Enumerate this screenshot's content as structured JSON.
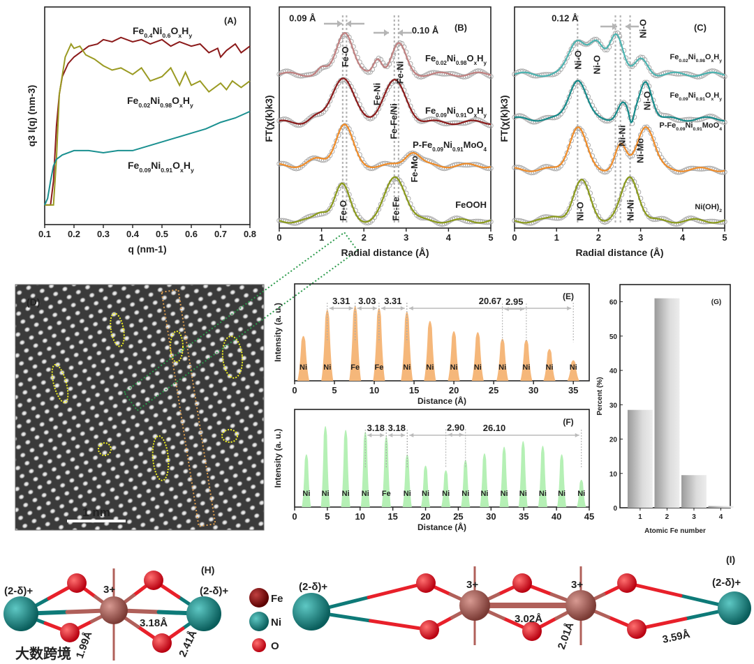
{
  "chart_data": [
    {
      "id": "A",
      "type": "line",
      "panel_label": "(A)",
      "xlabel": "q (nm-1)",
      "ylabel": "q3 I(q) (nm-3)",
      "xlim": [
        0.1,
        0.8
      ],
      "ylim": [
        0,
        1
      ],
      "xticks": [
        "0.1",
        "0.2",
        "0.3",
        "0.4",
        "0.5",
        "0.6",
        "0.7",
        "0.8"
      ],
      "series": [
        {
          "name": "Fe0.4Ni0.6OxHy",
          "color": "#8b1a1a",
          "x": [
            0.1,
            0.12,
            0.13,
            0.14,
            0.15,
            0.16,
            0.18,
            0.2,
            0.22,
            0.25,
            0.28,
            0.3,
            0.33,
            0.36,
            0.4,
            0.43,
            0.46,
            0.5,
            0.53,
            0.56,
            0.6,
            0.63,
            0.66,
            0.69,
            0.7,
            0.72,
            0.75,
            0.77,
            0.8
          ],
          "y": [
            0.09,
            0.09,
            0.2,
            0.45,
            0.6,
            0.68,
            0.74,
            0.77,
            0.79,
            0.82,
            0.83,
            0.85,
            0.84,
            0.86,
            0.84,
            0.85,
            0.83,
            0.85,
            0.82,
            0.84,
            0.82,
            0.83,
            0.79,
            0.81,
            0.77,
            0.8,
            0.83,
            0.79,
            0.82
          ]
        },
        {
          "name": "Fe0.02Ni0.98OxHy",
          "color": "#9a9a22",
          "x": [
            0.1,
            0.13,
            0.14,
            0.15,
            0.17,
            0.19,
            0.2,
            0.22,
            0.24,
            0.27,
            0.3,
            0.33,
            0.36,
            0.4,
            0.43,
            0.46,
            0.5,
            0.53,
            0.56,
            0.58,
            0.6,
            0.63,
            0.66,
            0.7,
            0.72,
            0.74,
            0.77,
            0.8
          ],
          "y": [
            0.09,
            0.09,
            0.3,
            0.6,
            0.77,
            0.83,
            0.81,
            0.82,
            0.78,
            0.76,
            0.73,
            0.71,
            0.72,
            0.69,
            0.72,
            0.66,
            0.68,
            0.72,
            0.64,
            0.7,
            0.64,
            0.66,
            0.61,
            0.65,
            0.62,
            0.66,
            0.63,
            0.66
          ]
        },
        {
          "name": "Fe0.09Ni0.91OxHy",
          "color": "#1a9090",
          "x": [
            0.1,
            0.11,
            0.12,
            0.13,
            0.14,
            0.16,
            0.2,
            0.25,
            0.3,
            0.35,
            0.4,
            0.45,
            0.5,
            0.55,
            0.6,
            0.65,
            0.7,
            0.75,
            0.8
          ],
          "y": [
            0.09,
            0.12,
            0.2,
            0.27,
            0.3,
            0.32,
            0.34,
            0.34,
            0.33,
            0.34,
            0.34,
            0.36,
            0.38,
            0.4,
            0.42,
            0.44,
            0.47,
            0.49,
            0.52
          ]
        }
      ]
    },
    {
      "id": "B",
      "type": "line",
      "panel_label": "(B)",
      "xlabel": "Radial distance (Å)",
      "ylabel": "FT(χ(k)k3)",
      "xlim": [
        0,
        5
      ],
      "ylim": [
        0,
        4.6
      ],
      "xticks": [
        "0",
        "1",
        "2",
        "3",
        "4",
        "5"
      ],
      "series": [
        {
          "name": "Fe0.02Ni0.98OxHy",
          "color": "#c08080",
          "offset": 3.2,
          "peaks": [
            [
              1.0,
              0.12,
              0.1
            ],
            [
              1.55,
              0.9,
              0.19
            ],
            [
              2.33,
              0.33,
              0.1
            ],
            [
              2.82,
              0.62,
              0.17
            ]
          ]
        },
        {
          "name": "Fe0.09Ni0.91OxHy",
          "color": "#8b1a1a",
          "offset": 2.2,
          "peaks": [
            [
              0.85,
              0.1,
              0.15
            ],
            [
              1.5,
              0.95,
              0.25
            ],
            [
              2.72,
              0.85,
              0.27
            ]
          ]
        },
        {
          "name": "P-Fe0.09Ni0.91MoO4",
          "color": "#f08c28",
          "offset": 1.3,
          "peaks": [
            [
              0.9,
              0.12,
              0.2
            ],
            [
              1.53,
              0.85,
              0.2
            ],
            [
              3.15,
              0.3,
              0.17
            ]
          ]
        },
        {
          "name": "FeOOH",
          "color": "#8a9a1a",
          "offset": 0.15,
          "peaks": [
            [
              1.0,
              0.18,
              0.15
            ],
            [
              1.48,
              0.75,
              0.18
            ],
            [
              2.75,
              0.92,
              0.24
            ]
          ]
        }
      ],
      "annotations": [
        {
          "text": "0.09 Å",
          "x": 0.55,
          "y": 4.3
        },
        {
          "text": "0.10 Å",
          "x": 3.45,
          "y": 4.05
        },
        {
          "text": "Fe-O",
          "x": 1.55,
          "y": 3.35,
          "vertical": true
        },
        {
          "text": "Fe-Ni",
          "x": 2.3,
          "y": 2.55,
          "vertical": true
        },
        {
          "text": "Fe-Ni",
          "x": 2.85,
          "y": 3.0,
          "vertical": true
        },
        {
          "text": "Fe-Fe/Ni",
          "x": 2.7,
          "y": 1.85,
          "vertical": true
        },
        {
          "text": "Fe-Mo",
          "x": 3.3,
          "y": 0.95,
          "vertical": true
        },
        {
          "text": "Fe-O",
          "x": 1.5,
          "y": 0.15,
          "vertical": true
        },
        {
          "text": "Fe-Fe",
          "x": 2.75,
          "y": 0.15,
          "vertical": true
        }
      ],
      "dashed_lines_x": [
        1.5,
        1.59,
        2.72,
        2.82
      ]
    },
    {
      "id": "C",
      "type": "line",
      "panel_label": "(C)",
      "xlabel": "Radial distance (Å)",
      "ylabel": "FT(χ(k)k3)",
      "xlim": [
        0,
        5
      ],
      "ylim": [
        0,
        4.6
      ],
      "xticks": [
        "0",
        "1",
        "2",
        "3",
        "4",
        "5"
      ],
      "series": [
        {
          "name": "Fe0.02Ni0.98OxHy",
          "color": "#4bb3b0",
          "offset": 3.2,
          "peaks": [
            [
              1.5,
              0.72,
              0.2
            ],
            [
              1.95,
              0.6,
              0.17
            ],
            [
              2.42,
              0.86,
              0.16
            ],
            [
              3.02,
              0.3,
              0.15
            ]
          ]
        },
        {
          "name": "Fe0.09Ni0.91OxHy",
          "color": "#158a8a",
          "offset": 2.27,
          "peaks": [
            [
              1.5,
              0.83,
              0.2
            ],
            [
              2.57,
              0.34,
              0.12
            ],
            [
              2.78,
              -0.25,
              0.05
            ],
            [
              3.12,
              0.8,
              0.15
            ]
          ]
        },
        {
          "name": "P-Fe0.09Ni0.91MoO4",
          "color": "#f08c28",
          "offset": 1.22,
          "peaks": [
            [
              1.5,
              0.88,
              0.2
            ],
            [
              2.52,
              0.5,
              0.13
            ],
            [
              3.12,
              0.92,
              0.2
            ]
          ]
        },
        {
          "name": "Ni(OH)2",
          "color": "#8a9a1a",
          "offset": 0.15,
          "peaks": [
            [
              1.0,
              0.1,
              0.15
            ],
            [
              1.6,
              0.82,
              0.2
            ],
            [
              2.75,
              0.92,
              0.2
            ]
          ]
        }
      ],
      "annotations": [
        {
          "text": "0.12 Å",
          "x": 1.2,
          "y": 4.3
        },
        {
          "text": "Ni-O",
          "x": 1.5,
          "y": 3.3,
          "vertical": true
        },
        {
          "text": "Ni-O",
          "x": 1.95,
          "y": 3.2,
          "vertical": true
        },
        {
          "text": "Ni-O",
          "x": 3.05,
          "y": 3.95,
          "vertical": true
        },
        {
          "text": "Ni-O",
          "x": 3.15,
          "y": 2.45,
          "vertical": true
        },
        {
          "text": "Ni-Ni",
          "x": 2.55,
          "y": 1.7,
          "vertical": true
        },
        {
          "text": "Ni-Mo",
          "x": 3.1,
          "y": 1.35,
          "vertical": true
        },
        {
          "text": "Ni-O",
          "x": 1.55,
          "y": 0.15,
          "vertical": true
        },
        {
          "text": "Ni-Ni",
          "x": 2.75,
          "y": 0.15,
          "vertical": true
        }
      ],
      "dashed_lines_x": [
        1.5,
        2.4,
        2.52,
        2.75
      ]
    },
    {
      "id": "E",
      "type": "area",
      "panel_label": "(E)",
      "xlabel": "Distance (Å)",
      "ylabel": "Intensity (a. u.)",
      "xlim": [
        0,
        37
      ],
      "ylim": [
        0,
        1
      ],
      "xticks": [
        "0",
        "5",
        "10",
        "15",
        "20",
        "25",
        "30",
        "35"
      ],
      "fill": "#f5b77a",
      "peaks_x": [
        1.1,
        4.1,
        7.6,
        10.6,
        14.1,
        17.0,
        20.0,
        23.0,
        26.1,
        29.1,
        32.0,
        35.0
      ],
      "peaks_y": [
        0.48,
        0.76,
        0.8,
        0.78,
        0.74,
        0.64,
        0.53,
        0.52,
        0.45,
        0.44,
        0.34,
        0.22
      ],
      "atoms": [
        "Ni",
        "Ni",
        "Fe",
        "Fe",
        "Ni",
        "Ni",
        "Ni",
        "Ni",
        "Ni",
        "Ni",
        "Ni",
        "Ni"
      ],
      "spacings": [
        {
          "text": "3.31",
          "from": 4.1,
          "to": 7.6
        },
        {
          "text": "3.03",
          "from": 7.6,
          "to": 10.6
        },
        {
          "text": "3.31",
          "from": 10.6,
          "to": 14.1
        },
        {
          "text": "20.67",
          "from": 14.1,
          "to": 35.0
        },
        {
          "text": "2.95",
          "from": 26.1,
          "to": 29.1
        }
      ]
    },
    {
      "id": "F",
      "type": "area",
      "panel_label": "(F)",
      "xlabel": "Distance (Å)",
      "ylabel": "Intensity (a. u.)",
      "xlim": [
        0,
        45
      ],
      "ylim": [
        0,
        1
      ],
      "xticks": [
        "0",
        "5",
        "10",
        "15",
        "20",
        "25",
        "30",
        "35",
        "40",
        "45"
      ],
      "fill": "#b5f0b5",
      "peaks_x": [
        1.8,
        4.7,
        7.8,
        10.8,
        14.0,
        17.2,
        20.0,
        23.1,
        26.1,
        29.0,
        32.0,
        34.9,
        37.9,
        40.8,
        43.8
      ],
      "peaks_y": [
        0.56,
        0.86,
        0.82,
        0.8,
        0.75,
        0.56,
        0.44,
        0.39,
        0.5,
        0.57,
        0.64,
        0.7,
        0.65,
        0.56,
        0.29
      ],
      "atoms": [
        "Ni",
        "Ni",
        "Ni",
        "Ni",
        "Fe",
        "Ni",
        "Ni",
        "Ni",
        "Ni",
        "Ni",
        "Ni",
        "Ni",
        "Ni",
        "Ni",
        "Ni"
      ],
      "spacings": [
        {
          "text": "3.18",
          "from": 10.8,
          "to": 14.0
        },
        {
          "text": "3.18",
          "from": 14.0,
          "to": 17.2
        },
        {
          "text": "26.10",
          "from": 17.2,
          "to": 43.8
        },
        {
          "text": "2.90",
          "from": 23.1,
          "to": 26.1
        }
      ]
    },
    {
      "id": "G",
      "type": "bar",
      "panel_label": "(G)",
      "xlabel": "Atomic Fe number",
      "ylabel": "Percent (%)",
      "categories": [
        "1",
        "2",
        "3",
        "4"
      ],
      "values": [
        28.5,
        61,
        9.5,
        0.5
      ],
      "ylim": [
        0,
        65
      ],
      "yticks": [
        "0",
        "10",
        "20",
        "30",
        "40",
        "50",
        "60"
      ]
    }
  ],
  "colors": {
    "Fe": "#b0605a",
    "Fe_legend": "#8b0000",
    "Ni": "#0e7a78",
    "O": "#e8202a",
    "Ni_label": "#1a8a7a",
    "Fe_label": "#9a2a1a"
  },
  "panel_D": {
    "label": "(D)",
    "scale_bar": "1 nm"
  },
  "panel_H": {
    "label": "(H)",
    "charge_left": "(2-δ)+",
    "charge_center": "3+",
    "charge_right": "(2-δ)+",
    "d_fe_ni": "3.18Å",
    "d_fe_o": "1.99Å",
    "d_ni_o": "2.41Å"
  },
  "legend": {
    "fe": "Fe",
    "ni": "Ni",
    "o": "O"
  },
  "panel_I": {
    "label": "(I)",
    "charge_left": "(2-δ)+",
    "charge_fe1": "3+",
    "charge_fe2": "3+",
    "charge_right": "(2-δ)+",
    "d_fe_fe": "3.02Å",
    "d_fe_o": "2.01Å",
    "d_ni_o": "3.59Å"
  },
  "watermark": "大数跨境"
}
